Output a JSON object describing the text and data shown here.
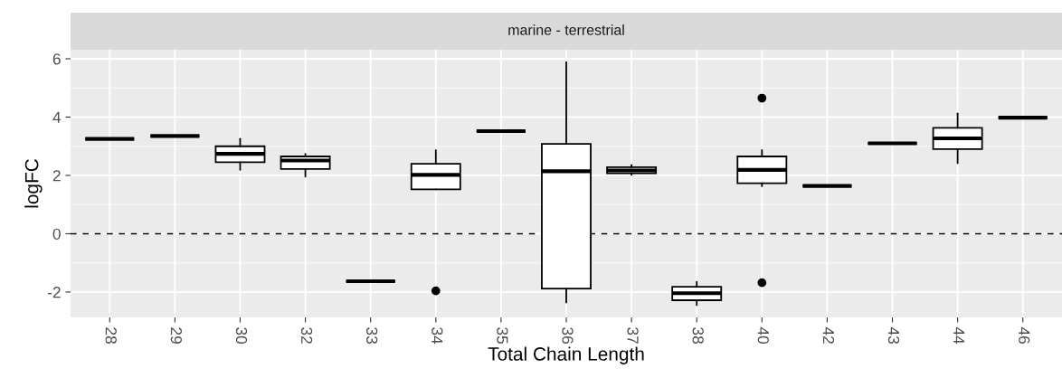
{
  "chart_data": {
    "type": "box",
    "title": "marine - terrestrial",
    "xlabel": "Total Chain Length",
    "ylabel": "logFC",
    "categories": [
      "28",
      "29",
      "30",
      "32",
      "33",
      "34",
      "35",
      "36",
      "37",
      "38",
      "40",
      "42",
      "43",
      "44",
      "46"
    ],
    "boxes": [
      {
        "low": 3.25,
        "q1": 3.25,
        "median": 3.25,
        "q3": 3.25,
        "high": 3.25
      },
      {
        "low": 3.35,
        "q1": 3.35,
        "median": 3.35,
        "q3": 3.35,
        "high": 3.35
      },
      {
        "low": 2.19,
        "q1": 2.45,
        "median": 2.74,
        "q3": 3.0,
        "high": 3.26
      },
      {
        "low": 1.96,
        "q1": 2.22,
        "median": 2.51,
        "q3": 2.65,
        "high": 2.74
      },
      {
        "low": -1.63,
        "q1": -1.63,
        "median": -1.63,
        "q3": -1.63,
        "high": -1.63
      },
      {
        "low": 1.52,
        "q1": 1.52,
        "median": 2.02,
        "q3": 2.4,
        "high": 2.87,
        "outliers": [
          -1.96
        ]
      },
      {
        "low": 3.52,
        "q1": 3.52,
        "median": 3.52,
        "q3": 3.52,
        "high": 3.52
      },
      {
        "low": -2.36,
        "q1": -1.88,
        "median": 2.14,
        "q3": 3.08,
        "high": 5.89
      },
      {
        "low": 2.02,
        "q1": 2.07,
        "median": 2.17,
        "q3": 2.28,
        "high": 2.36
      },
      {
        "low": -2.45,
        "q1": -2.28,
        "median": -2.04,
        "q3": -1.82,
        "high": -1.65
      },
      {
        "low": 1.63,
        "q1": 1.73,
        "median": 2.19,
        "q3": 2.65,
        "high": 2.87,
        "outliers": [
          4.65,
          -1.68
        ]
      },
      {
        "low": 1.64,
        "q1": 1.64,
        "median": 1.64,
        "q3": 1.64,
        "high": 1.64
      },
      {
        "low": 3.1,
        "q1": 3.1,
        "median": 3.1,
        "q3": 3.1,
        "high": 3.1
      },
      {
        "low": 2.42,
        "q1": 2.9,
        "median": 3.27,
        "q3": 3.63,
        "high": 4.13
      },
      {
        "low": 3.98,
        "q1": 3.98,
        "median": 3.98,
        "q3": 3.98,
        "high": 3.98
      }
    ],
    "ylim": [
      -2.87,
      6.31
    ],
    "yticks": [
      -2,
      0,
      2,
      4,
      6
    ],
    "grid": true,
    "ref_lines": [
      {
        "axis": "y",
        "value": 0,
        "line_style": "dashed",
        "color": "#000000"
      }
    ]
  }
}
